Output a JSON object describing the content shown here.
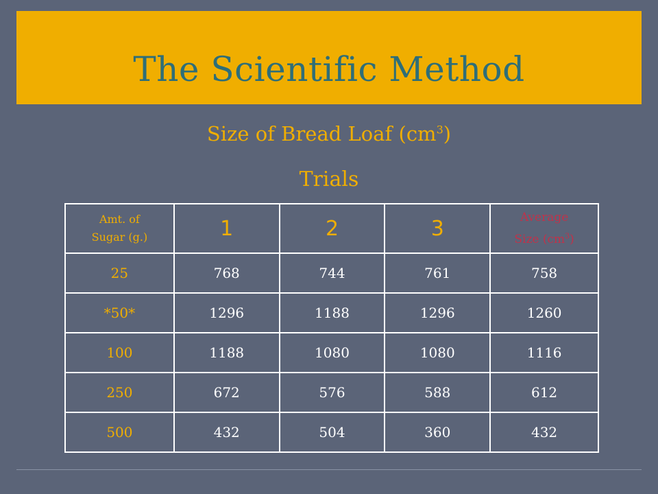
{
  "title": "The Scientific Method",
  "subtitle": {
    "main": "Size of Bread Loaf (cm",
    "sup": "3",
    "close": ")"
  },
  "trials_label": "Trials",
  "table": {
    "header": {
      "sugar_line1": "Amt. of",
      "sugar_line2": "Sugar (g.)",
      "trials": [
        "1",
        "2",
        "3"
      ],
      "avg_line1": "Average",
      "avg_line2": "Size (cm",
      "avg_sup": "3",
      "avg_close": ")"
    },
    "rows": [
      {
        "sugar": "25",
        "t1": "768",
        "t2": "744",
        "t3": "761",
        "avg": "758"
      },
      {
        "sugar": "*50*",
        "t1": "1296",
        "t2": "1188",
        "t3": "1296",
        "avg": "1260"
      },
      {
        "sugar": "100",
        "t1": "1188",
        "t2": "1080",
        "t3": "1080",
        "avg": "1116"
      },
      {
        "sugar": "250",
        "t1": "672",
        "t2": "576",
        "t3": "588",
        "avg": "612"
      },
      {
        "sugar": "500",
        "t1": "432",
        "t2": "504",
        "t3": "360",
        "avg": "432"
      }
    ]
  },
  "colors": {
    "background": "#5b6478",
    "accent_gold": "#f0ae00",
    "title_teal": "#2e6e78",
    "avg_red": "#c0324a",
    "cell_text": "#ffffff"
  }
}
